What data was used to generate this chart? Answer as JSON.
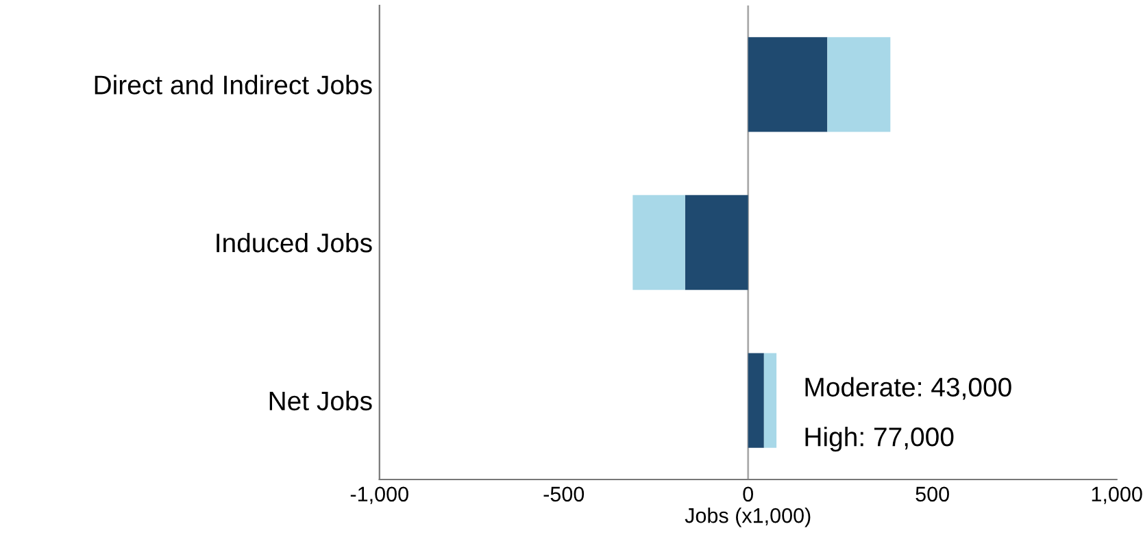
{
  "chart_data": {
    "type": "bar",
    "orientation": "horizontal",
    "stacked": true,
    "categories": [
      "Direct and Indirect Jobs",
      "Induced Jobs",
      "Net Jobs"
    ],
    "series": [
      {
        "color": "#1f4a70",
        "values": [
          215,
          -171,
          43
        ]
      },
      {
        "color": "#a8d8e8",
        "values": [
          171,
          -142,
          34
        ]
      }
    ],
    "xlim": [
      -1000,
      1000
    ],
    "xticks": [
      {
        "value": -1000,
        "label": "-1,000"
      },
      -500,
      0,
      500,
      {
        "value": 1000,
        "label": "1,000"
      }
    ],
    "xlabel": "Jobs (x1,000)",
    "ref_lines": [
      {
        "axis": "x",
        "value": 0,
        "color": "#aaaaaa"
      }
    ],
    "annotations": [
      "Moderate: 43,000",
      "High: 77,000"
    ],
    "grid": false,
    "legend": false
  }
}
